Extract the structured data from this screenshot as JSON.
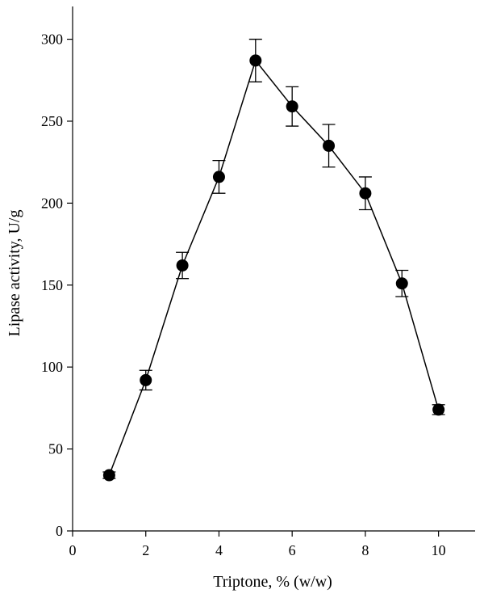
{
  "chart_data": {
    "type": "line",
    "title": "",
    "xlabel": "Triptone, % (w/w)",
    "ylabel": "Lipase activity, U/g",
    "xlim": [
      0,
      11
    ],
    "ylim": [
      0,
      320
    ],
    "x_ticks": [
      0,
      2,
      4,
      6,
      8,
      10
    ],
    "y_ticks": [
      0,
      50,
      100,
      150,
      200,
      250,
      300
    ],
    "grid": false,
    "legend": "none",
    "colors": {
      "line": "#000000",
      "marker": "#000000",
      "axes": "#000000"
    },
    "series": [
      {
        "x": [
          1,
          2,
          3,
          4,
          5,
          6,
          7,
          8,
          9,
          10
        ],
        "values": [
          34,
          92,
          162,
          216,
          287,
          259,
          235,
          206,
          151,
          74
        ],
        "error": [
          2,
          6,
          8,
          10,
          13,
          12,
          13,
          10,
          8,
          3
        ]
      }
    ]
  }
}
